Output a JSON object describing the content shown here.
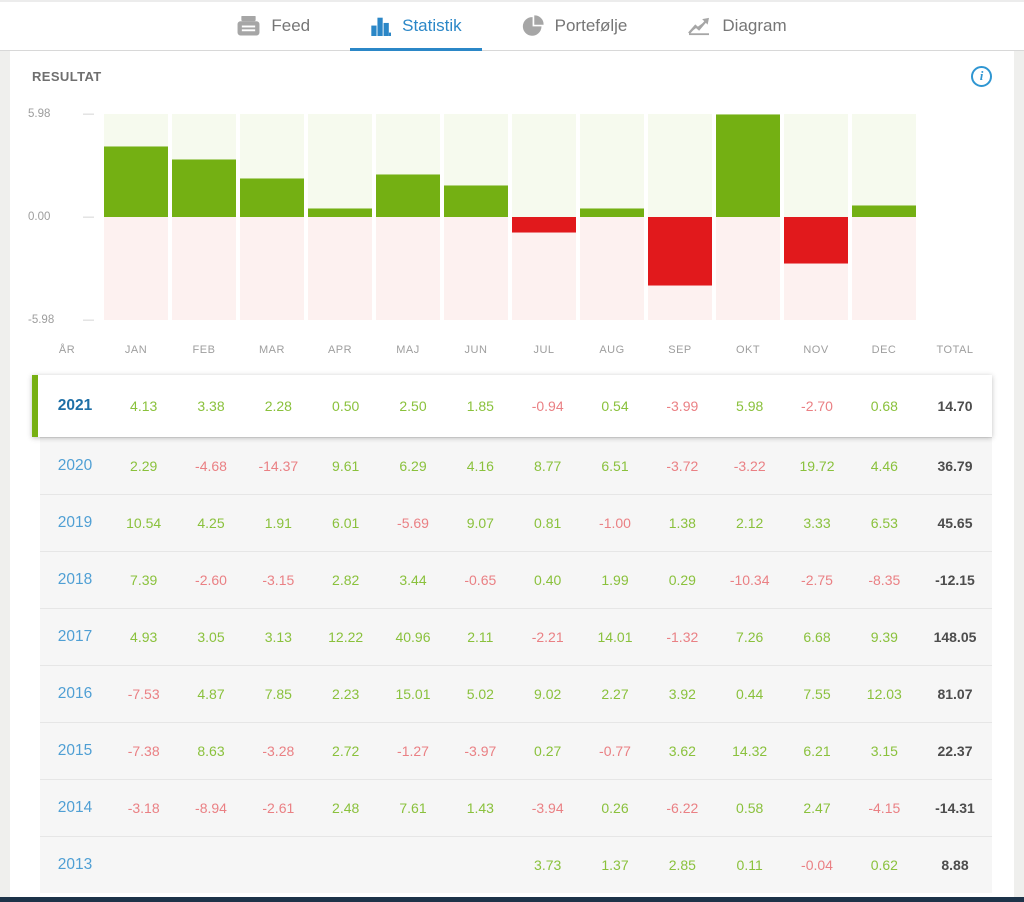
{
  "tabs": [
    {
      "label": "Feed",
      "icon": "feed-icon",
      "active": false
    },
    {
      "label": "Statistik",
      "icon": "bar-chart-icon",
      "active": true
    },
    {
      "label": "Portefølje",
      "icon": "pie-chart-icon",
      "active": false
    },
    {
      "label": "Diagram",
      "icon": "line-chart-icon",
      "active": false
    }
  ],
  "section": {
    "title": "RESULTAT"
  },
  "chart_data": {
    "type": "bar",
    "title": "RESULTAT",
    "categories": [
      "JAN",
      "FEB",
      "MAR",
      "APR",
      "MAJ",
      "JUN",
      "JUL",
      "AUG",
      "SEP",
      "OKT",
      "NOV",
      "DEC"
    ],
    "values": [
      4.13,
      3.38,
      2.28,
      0.5,
      2.5,
      1.85,
      -0.94,
      0.54,
      -3.99,
      5.98,
      -2.7,
      0.68
    ],
    "series_year": "2021",
    "yticks": [
      "5.98",
      "0.00",
      "-5.98"
    ],
    "ylim": [
      -5.98,
      5.98
    ],
    "grid": false,
    "legend": "none",
    "positive_color": "#74b013",
    "negative_color": "#e1191c",
    "positive_bg": "#f6faee",
    "negative_bg": "#fdf1f0"
  },
  "table": {
    "columns": [
      "ÅR",
      "JAN",
      "FEB",
      "MAR",
      "APR",
      "MAJ",
      "JUN",
      "JUL",
      "AUG",
      "SEP",
      "OKT",
      "NOV",
      "DEC",
      "TOTAL"
    ],
    "rows": [
      {
        "year": "2021",
        "selected": true,
        "values": [
          "4.13",
          "3.38",
          "2.28",
          "0.50",
          "2.50",
          "1.85",
          "-0.94",
          "0.54",
          "-3.99",
          "5.98",
          "-2.70",
          "0.68"
        ],
        "total": "14.70"
      },
      {
        "year": "2020",
        "selected": false,
        "values": [
          "2.29",
          "-4.68",
          "-14.37",
          "9.61",
          "6.29",
          "4.16",
          "8.77",
          "6.51",
          "-3.72",
          "-3.22",
          "19.72",
          "4.46"
        ],
        "total": "36.79"
      },
      {
        "year": "2019",
        "selected": false,
        "values": [
          "10.54",
          "4.25",
          "1.91",
          "6.01",
          "-5.69",
          "9.07",
          "0.81",
          "-1.00",
          "1.38",
          "2.12",
          "3.33",
          "6.53"
        ],
        "total": "45.65"
      },
      {
        "year": "2018",
        "selected": false,
        "values": [
          "7.39",
          "-2.60",
          "-3.15",
          "2.82",
          "3.44",
          "-0.65",
          "0.40",
          "1.99",
          "0.29",
          "-10.34",
          "-2.75",
          "-8.35"
        ],
        "total": "-12.15"
      },
      {
        "year": "2017",
        "selected": false,
        "values": [
          "4.93",
          "3.05",
          "3.13",
          "12.22",
          "40.96",
          "2.11",
          "-2.21",
          "14.01",
          "-1.32",
          "7.26",
          "6.68",
          "9.39"
        ],
        "total": "148.05"
      },
      {
        "year": "2016",
        "selected": false,
        "values": [
          "-7.53",
          "4.87",
          "7.85",
          "2.23",
          "15.01",
          "5.02",
          "9.02",
          "2.27",
          "3.92",
          "0.44",
          "7.55",
          "12.03"
        ],
        "total": "81.07"
      },
      {
        "year": "2015",
        "selected": false,
        "values": [
          "-7.38",
          "8.63",
          "-3.28",
          "2.72",
          "-1.27",
          "-3.97",
          "0.27",
          "-0.77",
          "3.62",
          "14.32",
          "6.21",
          "3.15"
        ],
        "total": "22.37"
      },
      {
        "year": "2014",
        "selected": false,
        "values": [
          "-3.18",
          "-8.94",
          "-2.61",
          "2.48",
          "7.61",
          "1.43",
          "-3.94",
          "0.26",
          "-6.22",
          "0.58",
          "2.47",
          "-4.15"
        ],
        "total": "-14.31"
      },
      {
        "year": "2013",
        "selected": false,
        "values": [
          "",
          "",
          "",
          "",
          "",
          "",
          "3.73",
          "1.37",
          "2.85",
          "0.11",
          "-0.04",
          "0.62"
        ],
        "total": "8.88"
      }
    ]
  },
  "colors": {
    "accent_blue": "#2b87c7",
    "year_link_blue": "#4f9fd4",
    "selected_year_blue": "#1e6fa6",
    "positive_text": "#8ac13c",
    "negative_text": "#ea8084",
    "bar_positive": "#74b013",
    "bar_negative": "#e1191c",
    "selected_row_border": "#77b013",
    "bottom_bar": "#1d3349"
  }
}
